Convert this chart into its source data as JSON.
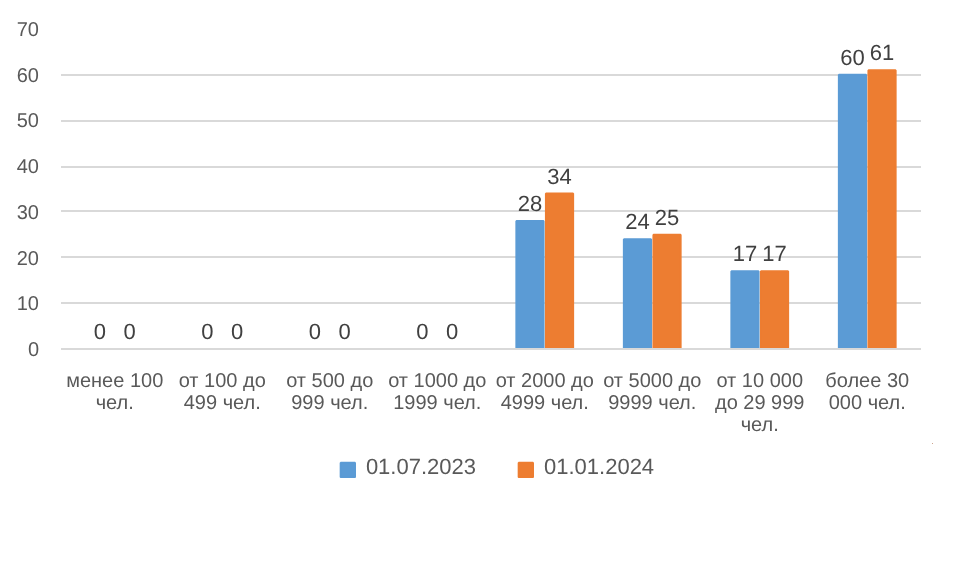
{
  "chart_data": {
    "type": "bar",
    "categories": [
      "менее 100 чел.",
      "от 100 до 499 чел.",
      "от 500 до 999 чел.",
      "от 1000 до 1999 чел.",
      "от 2000 до 4999 чел.",
      "от 5000 до 9999 чел.",
      "от 10 000 до 29 999 чел.",
      "более 30 000 чел."
    ],
    "series": [
      {
        "name": "01.07.2023",
        "color": "#5b9bd5",
        "values": [
          0,
          0,
          0,
          0,
          28,
          24,
          17,
          60
        ]
      },
      {
        "name": "01.01.2024",
        "color": "#ed7d31",
        "values": [
          0,
          0,
          0,
          0,
          34,
          25,
          17,
          61
        ]
      }
    ],
    "ylim": [
      0,
      70
    ],
    "yticks": [
      0,
      10,
      20,
      30,
      40,
      50,
      60,
      70
    ],
    "grid": "y",
    "legend": "bottom",
    "data_labels": true
  }
}
